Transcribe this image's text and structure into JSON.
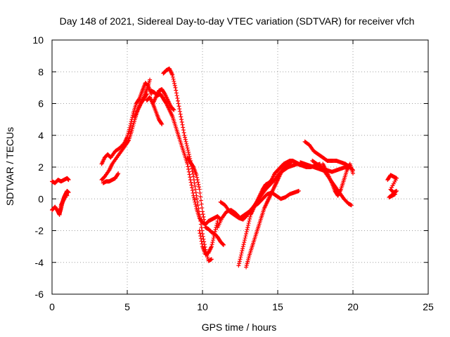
{
  "chart_data": {
    "type": "scatter",
    "title": "Day 148 of 2021, Sidereal Day-to-day VTEC variation (SDTVAR) for receiver vfch",
    "xlabel": "GPS time / hours",
    "ylabel": "SDTVAR / TECUs",
    "xlim": [
      0,
      25
    ],
    "ylim": [
      -6,
      10
    ],
    "xticks": [
      "0",
      "5",
      "10",
      "15",
      "20",
      "25"
    ],
    "yticks": [
      "-6",
      "-4",
      "-2",
      "0",
      "2",
      "4",
      "6",
      "8",
      "10"
    ],
    "grid": true,
    "legend": "none",
    "marker": "plus",
    "color": "#ff0000",
    "series": [
      {
        "x": [
          0.0,
          0.2,
          0.4,
          0.6,
          0.8,
          1.0,
          1.1
        ],
        "y": [
          1.1,
          1.0,
          1.2,
          1.1,
          1.2,
          1.3,
          1.2
        ]
      },
      {
        "x": [
          0.0,
          0.2,
          0.4,
          0.5,
          0.6,
          0.7,
          0.8,
          0.9,
          1.0,
          1.1
        ],
        "y": [
          -0.7,
          -0.5,
          -0.8,
          -1.0,
          -0.4,
          -0.2,
          0.1,
          0.3,
          0.5,
          0.4
        ]
      },
      {
        "x": [
          0.5,
          0.6,
          0.7,
          0.8,
          0.9,
          1.0
        ],
        "y": [
          -0.9,
          -0.6,
          -0.2,
          0.0,
          0.3,
          0.2
        ]
      },
      {
        "x": [
          3.3,
          3.5,
          3.7,
          3.9,
          4.2,
          4.5,
          4.8,
          5.0,
          5.2,
          5.4,
          5.6,
          5.8,
          6.0,
          6.2,
          6.4,
          6.6
        ],
        "y": [
          2.2,
          2.6,
          2.8,
          2.6,
          3.0,
          3.2,
          3.5,
          3.9,
          4.6,
          5.4,
          6.0,
          6.3,
          6.8,
          7.3,
          7.1,
          6.6
        ]
      },
      {
        "x": [
          3.3,
          3.5,
          3.8,
          4.0,
          4.3,
          4.6,
          4.9,
          5.1,
          5.3,
          5.5,
          5.7,
          5.9,
          6.1,
          6.3
        ],
        "y": [
          1.2,
          1.4,
          1.8,
          2.2,
          2.6,
          3.0,
          3.4,
          3.7,
          4.3,
          5.0,
          5.6,
          6.0,
          6.3,
          6.6
        ]
      },
      {
        "x": [
          3.4,
          3.6,
          3.8,
          4.0,
          4.2,
          4.4
        ],
        "y": [
          1.0,
          1.1,
          1.1,
          1.2,
          1.3,
          1.6
        ]
      },
      {
        "x": [
          5.5,
          5.7,
          5.9,
          6.1,
          6.3,
          6.5
        ],
        "y": [
          5.2,
          5.6,
          6.0,
          6.4,
          6.9,
          7.5
        ]
      },
      {
        "x": [
          6.6,
          6.8,
          7.0,
          7.2,
          7.4,
          7.6,
          7.8,
          8.0,
          8.2,
          8.4,
          8.6,
          8.8,
          9.0,
          9.2,
          9.4,
          9.6,
          9.8,
          10.0,
          10.2,
          10.4,
          10.6,
          10.8,
          11.0,
          11.2
        ],
        "y": [
          6.8,
          6.7,
          6.5,
          6.6,
          6.3,
          6.0,
          5.6,
          5.2,
          4.6,
          4.0,
          3.4,
          2.8,
          2.2,
          1.2,
          0.2,
          -0.6,
          -1.2,
          -1.5,
          -1.6,
          -1.4,
          -1.3,
          -1.2,
          -1.1,
          -1.3
        ]
      },
      {
        "x": [
          6.3,
          6.5,
          6.7,
          6.9,
          7.1,
          7.3
        ],
        "y": [
          6.2,
          6.4,
          6.0,
          5.5,
          5.0,
          4.7
        ]
      },
      {
        "x": [
          6.7,
          6.9,
          7.1,
          7.3,
          7.5,
          7.7,
          7.9,
          8.1
        ],
        "y": [
          6.0,
          6.4,
          6.8,
          6.9,
          6.6,
          6.2,
          5.8,
          5.6
        ]
      },
      {
        "x": [
          7.4,
          7.6,
          7.8,
          8.0,
          8.2,
          8.4,
          8.6,
          8.8,
          9.0,
          9.2,
          9.4,
          9.6,
          9.8,
          10.0,
          10.2,
          10.4,
          10.6
        ],
        "y": [
          7.9,
          8.1,
          8.2,
          7.8,
          7.0,
          6.0,
          5.0,
          4.0,
          3.2,
          2.4,
          1.4,
          0.2,
          -1.0,
          -2.2,
          -3.2,
          -3.9,
          -3.8
        ]
      },
      {
        "x": [
          9.0,
          9.2,
          9.4,
          9.6,
          9.8,
          10.0,
          10.2,
          10.4,
          10.6,
          10.8,
          11.0,
          11.2,
          11.4
        ],
        "y": [
          2.6,
          2.3,
          2.0,
          1.5,
          0.6,
          -0.8,
          -1.8,
          -1.9,
          -2.1,
          -2.2,
          -2.4,
          -2.7,
          -2.9
        ]
      },
      {
        "x": [
          9.8,
          10.0,
          10.2,
          10.4,
          10.6,
          10.8,
          11.0
        ],
        "y": [
          -2.0,
          -3.0,
          -3.5,
          -3.4,
          -3.0,
          -2.2,
          -1.4
        ]
      },
      {
        "x": [
          11.0,
          11.3,
          11.6,
          11.9,
          12.2,
          12.5,
          12.8,
          13.1,
          13.4,
          13.7,
          14.0,
          14.3,
          14.6,
          14.9,
          15.2,
          15.5,
          15.8,
          16.1,
          16.4
        ],
        "y": [
          -1.8,
          -1.2,
          -0.8,
          -0.7,
          -0.9,
          -1.2,
          -1.0,
          -0.8,
          -0.5,
          -0.3,
          0.0,
          0.3,
          0.4,
          0.2,
          0.0,
          0.1,
          0.3,
          0.4,
          0.5
        ]
      },
      {
        "x": [
          11.2,
          11.5,
          11.8,
          12.1,
          12.4,
          12.7,
          13.0,
          13.3,
          13.6,
          13.9,
          14.2,
          14.5,
          14.8,
          15.1,
          15.4,
          15.7,
          16.0,
          16.3,
          16.6,
          16.9,
          17.2,
          17.5,
          17.8
        ],
        "y": [
          -0.2,
          -0.4,
          -0.8,
          -1.0,
          -1.2,
          -1.3,
          -1.0,
          -0.6,
          -0.2,
          0.2,
          0.6,
          0.9,
          1.2,
          1.6,
          1.8,
          2.0,
          2.1,
          2.2,
          2.1,
          2.0,
          2.0,
          2.1,
          2.2
        ]
      },
      {
        "x": [
          12.4,
          12.6,
          12.8,
          13.0,
          13.2,
          13.4,
          13.6,
          13.8,
          14.0,
          14.2,
          14.4,
          14.6,
          14.8,
          15.0,
          15.2,
          15.4,
          15.6,
          15.8,
          16.0,
          16.2,
          16.4,
          16.6,
          16.8,
          17.0
        ],
        "y": [
          -4.2,
          -3.4,
          -2.6,
          -1.8,
          -1.0,
          -0.6,
          -0.2,
          0.2,
          0.6,
          0.9,
          1.0,
          1.2,
          1.6,
          1.8,
          2.0,
          2.2,
          2.3,
          2.4,
          2.4,
          2.3,
          2.2,
          2.2,
          2.1,
          2.1
        ]
      },
      {
        "x": [
          12.9,
          13.1,
          13.3,
          13.5,
          13.7,
          13.9,
          14.1,
          14.3,
          14.5,
          14.7,
          14.9,
          15.1,
          15.3,
          15.5,
          15.7,
          15.9
        ],
        "y": [
          -4.3,
          -3.6,
          -3.0,
          -2.4,
          -1.8,
          -1.2,
          -0.6,
          -0.2,
          0.2,
          0.6,
          1.0,
          1.4,
          1.8,
          2.0,
          2.2,
          2.3
        ]
      },
      {
        "x": [
          16.8,
          17.1,
          17.4,
          17.7,
          18.0,
          18.3,
          18.6,
          18.9,
          19.2,
          19.5,
          19.8,
          20.0
        ],
        "y": [
          3.6,
          3.4,
          3.0,
          2.8,
          2.6,
          2.4,
          2.4,
          2.4,
          2.3,
          2.2,
          2.0,
          1.8
        ]
      },
      {
        "x": [
          16.5,
          16.8,
          17.1,
          17.4,
          17.7,
          18.0,
          18.3,
          18.6,
          18.9,
          19.2,
          19.5,
          19.8
        ],
        "y": [
          2.3,
          2.2,
          2.1,
          2.0,
          1.9,
          1.8,
          1.8,
          1.7,
          1.8,
          1.9,
          2.0,
          2.1
        ]
      },
      {
        "x": [
          17.3,
          17.6,
          17.9,
          18.2,
          18.5,
          18.8,
          19.1,
          19.4,
          19.7,
          19.9
        ],
        "y": [
          2.4,
          2.2,
          2.0,
          1.6,
          1.2,
          0.8,
          0.4,
          0.0,
          -0.3,
          -0.4
        ]
      },
      {
        "x": [
          18.0,
          18.2,
          18.4,
          18.6,
          18.8,
          19.0,
          19.2,
          19.4,
          19.6,
          19.8,
          20.0
        ],
        "y": [
          2.2,
          1.8,
          1.4,
          1.0,
          0.5,
          0.2,
          0.6,
          1.2,
          1.8,
          2.2,
          1.6
        ]
      },
      {
        "x": [
          22.3,
          22.5,
          22.7,
          22.9,
          22.5,
          22.7,
          22.9,
          22.4,
          22.6,
          22.8
        ],
        "y": [
          1.2,
          1.5,
          1.4,
          1.3,
          0.6,
          0.4,
          0.5,
          0.1,
          0.2,
          0.3
        ]
      }
    ]
  }
}
